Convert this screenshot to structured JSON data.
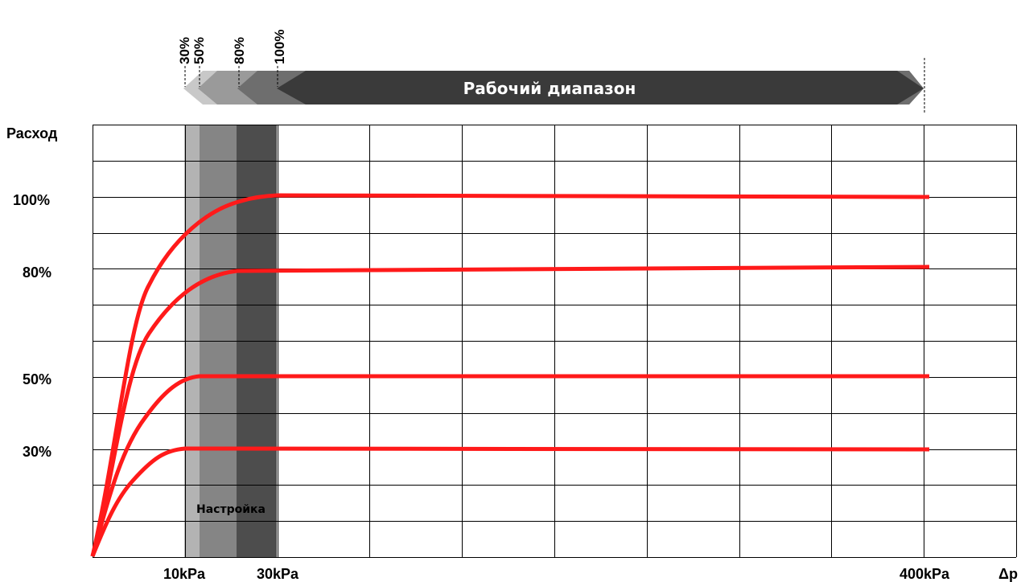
{
  "chart_data": {
    "type": "line",
    "title": "",
    "ylabel": "Расход",
    "xlabel": "Δp",
    "ylim": [
      0,
      110
    ],
    "y_ticks": [
      {
        "value": 100,
        "label": "100%"
      },
      {
        "value": 80,
        "label": "80%"
      },
      {
        "value": 50,
        "label": "50%"
      },
      {
        "value": 30,
        "label": "30%"
      }
    ],
    "x_ticks": [
      {
        "label": "10kPa"
      },
      {
        "label": "30kPa"
      },
      {
        "label": "400kPa"
      }
    ],
    "grid": true,
    "setting_zone_label": "Настройка",
    "working_range_label": "Рабочий диапазон",
    "start_markers": [
      "30%",
      "50%",
      "80%",
      "100%"
    ],
    "series": [
      {
        "label": "100%",
        "plateau": 100,
        "knee_tick": "30kPa"
      },
      {
        "label": "80%",
        "plateau": 80
      },
      {
        "label": "50%",
        "plateau": 50
      },
      {
        "label": "30%",
        "plateau": 30,
        "knee_tick": "10kPa"
      }
    ],
    "colors": {
      "curve": "#ff1a1a",
      "zone_light": "#b3b3b3",
      "zone_mid": "#858585",
      "zone_dark": "#4d4d4d",
      "banner": "#3a3a3a"
    }
  }
}
